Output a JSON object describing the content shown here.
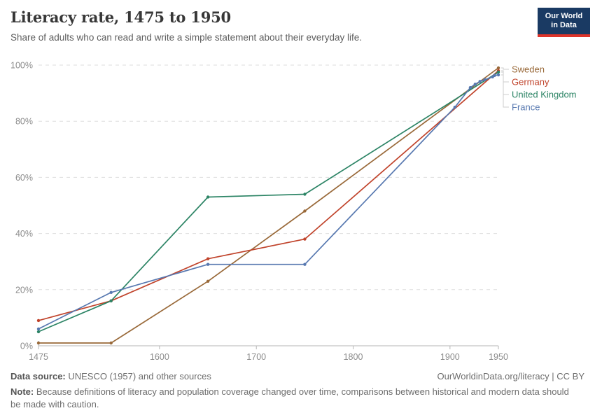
{
  "header": {
    "title": "Literacy rate, 1475 to 1950",
    "subtitle": "Share of adults who can read and write a simple statement about their everyday life.",
    "logo": {
      "line1": "Our World",
      "line2": "in Data",
      "bg_color": "#1a3a63",
      "accent_color": "#de342a"
    }
  },
  "chart_data": {
    "type": "line",
    "title": "Literacy rate, 1475 to 1950",
    "xlabel": "",
    "ylabel": "",
    "xlim": [
      1475,
      1950
    ],
    "ylim": [
      0,
      100
    ],
    "x_ticks": [
      1475,
      1600,
      1700,
      1800,
      1900,
      1950
    ],
    "y_ticks": [
      0,
      20,
      40,
      60,
      80,
      100
    ],
    "y_tick_suffix": "%",
    "grid": "horizontal-dashed",
    "legend_position": "right-of-line-ends",
    "colors": {
      "grid": "#dedede",
      "axis": "#b6b6b6",
      "tick_label": "#8b8b8b",
      "connector": "#cccccc"
    },
    "series": [
      {
        "name": "Sweden",
        "color": "#996939",
        "points": [
          [
            1475,
            1
          ],
          [
            1550,
            1
          ],
          [
            1650,
            23
          ],
          [
            1750,
            48
          ],
          [
            1950,
            99
          ]
        ]
      },
      {
        "name": "Germany",
        "color": "#c0432b",
        "points": [
          [
            1475,
            9
          ],
          [
            1550,
            16
          ],
          [
            1650,
            31
          ],
          [
            1750,
            38
          ],
          [
            1950,
            98
          ]
        ]
      },
      {
        "name": "United Kingdom",
        "color": "#2c8465",
        "points": [
          [
            1475,
            5
          ],
          [
            1550,
            16
          ],
          [
            1650,
            53
          ],
          [
            1750,
            54
          ],
          [
            1950,
            97.5
          ]
        ]
      },
      {
        "name": "France",
        "color": "#5778b0",
        "points": [
          [
            1475,
            6
          ],
          [
            1550,
            19
          ],
          [
            1650,
            29
          ],
          [
            1750,
            29
          ],
          [
            1905,
            85
          ],
          [
            1921,
            92
          ],
          [
            1926,
            93.2
          ],
          [
            1931,
            94.2
          ],
          [
            1936,
            94.8
          ],
          [
            1944,
            95.8
          ],
          [
            1946,
            96.3
          ],
          [
            1950,
            96.5
          ]
        ]
      }
    ]
  },
  "footer": {
    "source_label": "Data source:",
    "source_text": " UNESCO (1957) and other sources",
    "credit": "OurWorldinData.org/literacy | CC BY",
    "note_label": "Note:",
    "note_text": " Because definitions of literacy and population coverage changed over time, comparisons between historical and modern data should be made with caution."
  }
}
